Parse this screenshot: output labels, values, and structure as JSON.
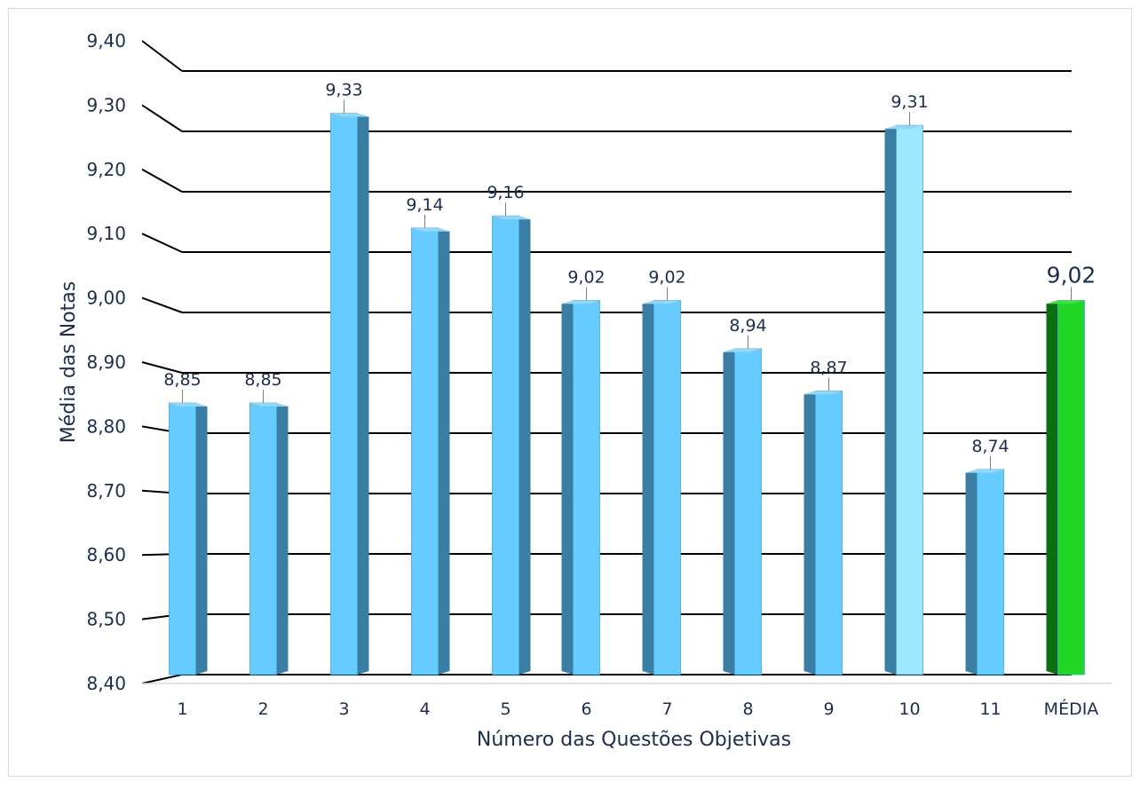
{
  "chart_data": {
    "type": "bar",
    "title": "",
    "xlabel": "Número das Questões Objetivas",
    "ylabel": "Média das Notas",
    "ylim": [
      8.4,
      9.4
    ],
    "yticks": [
      "8,40",
      "8,50",
      "8,60",
      "8,70",
      "8,80",
      "8,90",
      "9,00",
      "9,10",
      "9,20",
      "9,30",
      "9,40"
    ],
    "categories": [
      "1",
      "2",
      "3",
      "4",
      "5",
      "6",
      "7",
      "8",
      "9",
      "10",
      "11",
      "MÉDIA"
    ],
    "values": [
      8.85,
      8.85,
      9.33,
      9.14,
      9.16,
      9.02,
      9.02,
      8.94,
      8.87,
      9.31,
      8.74,
      9.02
    ],
    "value_labels": [
      "8,85",
      "8,85",
      "9,33",
      "9,14",
      "9,16",
      "9,02",
      "9,02",
      "8,94",
      "8,87",
      "9,31",
      "8,74",
      "9,02"
    ],
    "grid": true,
    "legend": "none",
    "colors": {
      "bar": "#66ccff",
      "bar_shade": "#3a7fa3",
      "bar_highlight": "#9ce8ff",
      "average_bar": "#1fd624",
      "average_shade": "#0b6e10",
      "gridline": "#000000",
      "text": "#1f2d4d"
    }
  }
}
